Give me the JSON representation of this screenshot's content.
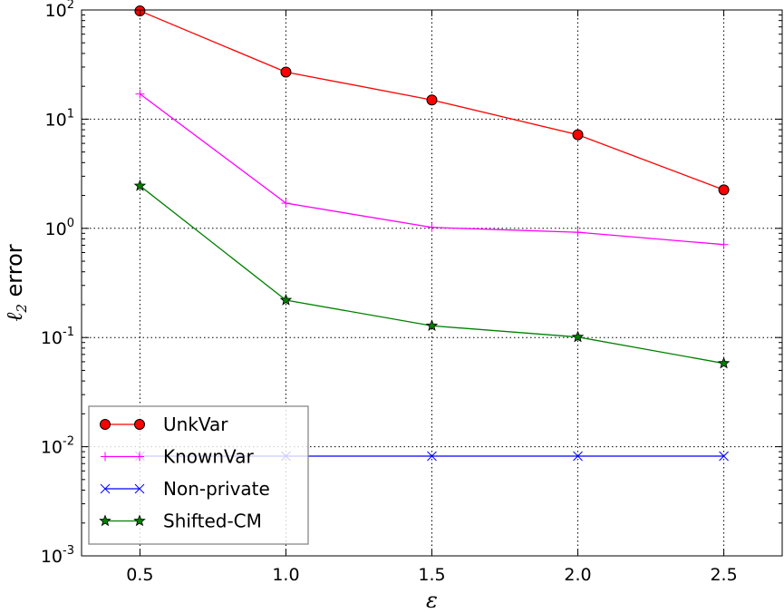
{
  "chart_data": {
    "type": "line",
    "title": "",
    "xlabel": "ε",
    "ylabel": {
      "main": "ℓ",
      "subscript": "2",
      "suffix": " error"
    },
    "xlim": [
      0.3,
      2.7
    ],
    "ylim": [
      0.001,
      100
    ],
    "yscale": "log",
    "grid": true,
    "x_ticks": [
      "0.5",
      "1.0",
      "1.5",
      "2.0",
      "2.5"
    ],
    "y_ticks": [
      {
        "base": "10",
        "exp": "-3",
        "value": 0.001
      },
      {
        "base": "10",
        "exp": "-2",
        "value": 0.01
      },
      {
        "base": "10",
        "exp": "-1",
        "value": 0.1
      },
      {
        "base": "10",
        "exp": "0",
        "value": 1
      },
      {
        "base": "10",
        "exp": "1",
        "value": 10
      },
      {
        "base": "10",
        "exp": "2",
        "value": 100
      }
    ],
    "legend_position": "lower-left",
    "x": [
      0.5,
      1.0,
      1.5,
      2.0,
      2.5
    ],
    "series": [
      {
        "name": "UnkVar",
        "color": "#ff0000",
        "marker": "circle",
        "values": [
          98,
          27,
          15,
          7.2,
          2.25
        ]
      },
      {
        "name": "KnownVar",
        "color": "#ff00ff",
        "marker": "plus",
        "values": [
          17,
          1.7,
          1.02,
          0.92,
          0.71
        ]
      },
      {
        "name": "Non-private",
        "color": "#0000ff",
        "marker": "x",
        "values": [
          0.0082,
          0.0082,
          0.0082,
          0.0082,
          0.0082
        ]
      },
      {
        "name": "Shifted-CM",
        "color": "#008000",
        "marker": "star",
        "values": [
          2.45,
          0.22,
          0.128,
          0.101,
          0.058
        ]
      }
    ]
  }
}
